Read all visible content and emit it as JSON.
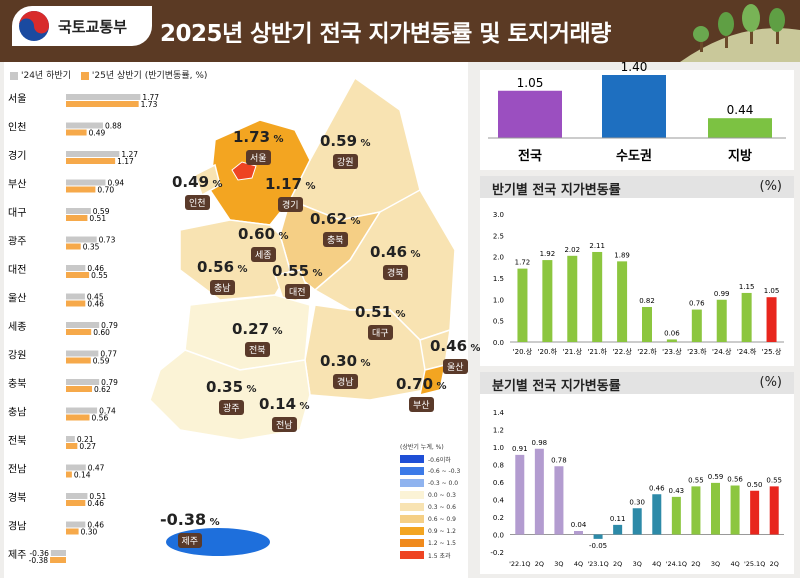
{
  "header": {
    "org": "국토교통부",
    "title": "2025년 상반기 전국 지가변동률 및 토지거래량",
    "bg_color": "#5b3a24"
  },
  "bar_legend": {
    "prev": "'24년 하반기",
    "curr": "'25년 상반기 (반기변동률, %)"
  },
  "region_bars": {
    "chart_data": {
      "type": "bar",
      "categories": [
        "서울",
        "인천",
        "경기",
        "부산",
        "대구",
        "광주",
        "대전",
        "울산",
        "세종",
        "강원",
        "충북",
        "충남",
        "전북",
        "전남",
        "경북",
        "경남",
        "제주"
      ],
      "series": [
        {
          "name": "'24년 하반기",
          "color": "#c8c8c8",
          "values": [
            1.77,
            0.88,
            1.27,
            0.94,
            0.59,
            0.73,
            0.46,
            0.45,
            0.79,
            0.77,
            0.79,
            0.74,
            0.21,
            0.47,
            0.51,
            0.46,
            -0.36
          ]
        },
        {
          "name": "'25년 상반기",
          "color": "#f6a94a",
          "values": [
            1.73,
            0.49,
            1.17,
            0.7,
            0.51,
            0.35,
            0.55,
            0.46,
            0.6,
            0.59,
            0.62,
            0.56,
            0.27,
            0.14,
            0.46,
            0.3,
            -0.38
          ]
        }
      ],
      "labels_prev": [
        "1.77",
        "0.88",
        "1.27",
        "0.94",
        "0.59",
        "0.73",
        "0.46",
        "0.45",
        "0.79",
        "0.77",
        "0.79",
        "0.74",
        "0.21",
        "0.47",
        "0.51",
        "0.46",
        "-0.36"
      ],
      "labels_curr": [
        "1.73",
        "0.49",
        "1.17",
        "0.70",
        "0.51",
        "0.35",
        "0.55",
        "0.46",
        "0.60",
        "0.59",
        "0.62",
        "0.56",
        "0.27",
        "0.14",
        "0.46",
        "0.30",
        "-0.38"
      ]
    }
  },
  "map": {
    "regions": [
      {
        "name": "서울",
        "value": "1.73"
      },
      {
        "name": "인천",
        "value": "0.49"
      },
      {
        "name": "경기",
        "value": "1.17"
      },
      {
        "name": "강원",
        "value": "0.59"
      },
      {
        "name": "충북",
        "value": "0.62"
      },
      {
        "name": "세종",
        "value": "0.60"
      },
      {
        "name": "충남",
        "value": "0.56"
      },
      {
        "name": "대전",
        "value": "0.55"
      },
      {
        "name": "경북",
        "value": "0.46"
      },
      {
        "name": "대구",
        "value": "0.51"
      },
      {
        "name": "전북",
        "value": "0.27"
      },
      {
        "name": "울산",
        "value": "0.46"
      },
      {
        "name": "경남",
        "value": "0.30"
      },
      {
        "name": "부산",
        "value": "0.70"
      },
      {
        "name": "광주",
        "value": "0.35"
      },
      {
        "name": "전남",
        "value": "0.14"
      },
      {
        "name": "제주",
        "value": "-0.38"
      }
    ],
    "pct": "%",
    "legend_title": "(상반기 누계, %)",
    "legend": [
      {
        "label": "-0.6이하",
        "color": "#1f4fd6"
      },
      {
        "label": "-0.6 ~ -0.3",
        "color": "#3c7ae8"
      },
      {
        "label": "-0.3 ~ 0.0",
        "color": "#8fb3ef"
      },
      {
        "label": "0.0 ~ 0.3",
        "color": "#fbf3d6"
      },
      {
        "label": "0.3 ~ 0.6",
        "color": "#f8e3b2"
      },
      {
        "label": "0.6 ~ 0.9",
        "color": "#f5cf85"
      },
      {
        "label": "0.9 ~ 1.2",
        "color": "#f3a521"
      },
      {
        "label": "1.2 ~ 1.5",
        "color": "#f08a1c"
      },
      {
        "label": "1.5 초과",
        "color": "#ee4422"
      }
    ]
  },
  "summary": {
    "chart_data": {
      "type": "bar",
      "categories": [
        "전국",
        "수도권",
        "지방"
      ],
      "values": [
        1.05,
        1.4,
        0.44
      ],
      "labels": [
        "1.05",
        "1.40",
        "0.44"
      ],
      "colors": [
        "#9b4fc0",
        "#1e6fc0",
        "#7cc242"
      ]
    }
  },
  "half": {
    "title": "반기별 전국 지가변동률",
    "unit": "(%)",
    "chart_data": {
      "type": "bar",
      "categories": [
        "'20.상",
        "'20.하",
        "'21.상",
        "'21.하",
        "'22.상",
        "'22.하",
        "'23.상",
        "'23.하",
        "'24.상",
        "'24.하",
        "'25.상"
      ],
      "values": [
        1.72,
        1.92,
        2.02,
        2.11,
        1.89,
        0.82,
        0.06,
        0.76,
        0.99,
        1.15,
        1.05
      ],
      "labels": [
        "1.72",
        "1.92",
        "2.02",
        "2.11",
        "1.89",
        "0.82",
        "0.06",
        "0.76",
        "0.99",
        "1.15",
        "1.05"
      ],
      "ylim": [
        0,
        3.0
      ],
      "yticks": [
        "0.0",
        "0.5",
        "1.0",
        "1.5",
        "2.0",
        "2.5",
        "3.0"
      ],
      "color": "#8cc63f",
      "highlight_color": "#e8261d"
    }
  },
  "quarter": {
    "title": "분기별 전국 지가변동률",
    "unit": "(%)",
    "chart_data": {
      "type": "bar",
      "tick_labels": [
        "'22.1Q",
        "2Q",
        "3Q",
        "4Q",
        "'23.1Q",
        "2Q",
        "3Q",
        "4Q",
        "'24.1Q",
        "2Q",
        "3Q",
        "4Q",
        "'25.1Q",
        "2Q"
      ],
      "values": [
        0.91,
        0.98,
        0.78,
        0.04,
        -0.05,
        0.11,
        0.3,
        0.46,
        0.43,
        0.55,
        0.59,
        0.56,
        0.5,
        0.55
      ],
      "labels": [
        "0.91",
        "0.98",
        "0.78",
        "0.04",
        "-0.05",
        "0.11",
        "0.30",
        "0.46",
        "0.43",
        "0.55",
        "0.59",
        "0.56",
        "0.50",
        "0.55"
      ],
      "ylim": [
        -0.2,
        1.4
      ],
      "yticks": [
        "-0.2",
        "0.0",
        "0.2",
        "0.4",
        "0.6",
        "0.8",
        "1.0",
        "1.2",
        "1.4"
      ],
      "colors": [
        "#b39cd0",
        "#b39cd0",
        "#b39cd0",
        "#b39cd0",
        "#2d8aa8",
        "#2d8aa8",
        "#2d8aa8",
        "#2d8aa8",
        "#8cc63f",
        "#8cc63f",
        "#8cc63f",
        "#8cc63f",
        "#e8261d",
        "#e8261d"
      ]
    }
  }
}
